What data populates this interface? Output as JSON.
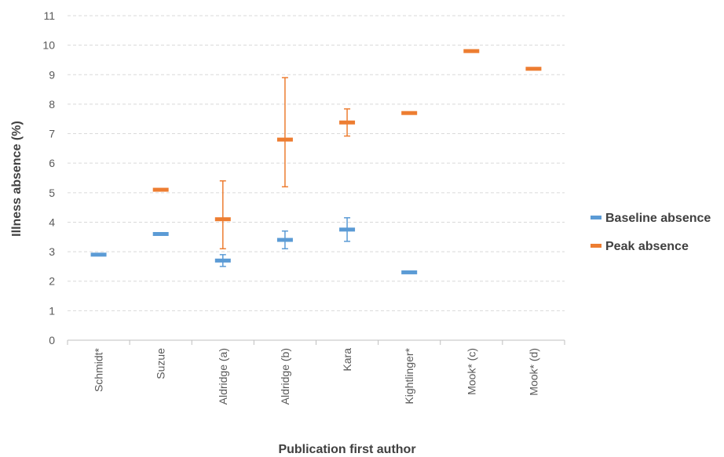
{
  "chart_data": {
    "type": "scatter",
    "xlabel": "Publication first author",
    "ylabel": "Illness absence (%)",
    "ylim": [
      0,
      11
    ],
    "yticks": [
      0,
      1,
      2,
      3,
      4,
      5,
      6,
      7,
      8,
      9,
      10,
      11
    ],
    "categories": [
      "Schmidt*",
      "Suzue",
      "Aldridge (a)",
      "Aldridge (b)",
      "Kara",
      "Kightlinger*",
      "Mook* (c)",
      "Mook* (d)"
    ],
    "grid": true,
    "legend_position": "right",
    "series": [
      {
        "name": "Baseline absence",
        "color": "#5B9BD5",
        "values": [
          2.9,
          3.6,
          2.7,
          3.4,
          3.75,
          2.3,
          null,
          null
        ],
        "err_low": [
          null,
          null,
          2.5,
          3.1,
          3.35,
          null,
          null,
          null
        ],
        "err_high": [
          null,
          null,
          2.9,
          3.7,
          4.15,
          null,
          null,
          null
        ]
      },
      {
        "name": "Peak absence",
        "color": "#ED7D31",
        "values": [
          null,
          5.1,
          4.1,
          6.8,
          7.38,
          7.7,
          9.8,
          9.2
        ],
        "err_low": [
          null,
          null,
          3.1,
          5.2,
          6.92,
          null,
          null,
          null
        ],
        "err_high": [
          null,
          null,
          5.4,
          8.9,
          7.84,
          null,
          null,
          null
        ]
      }
    ]
  }
}
